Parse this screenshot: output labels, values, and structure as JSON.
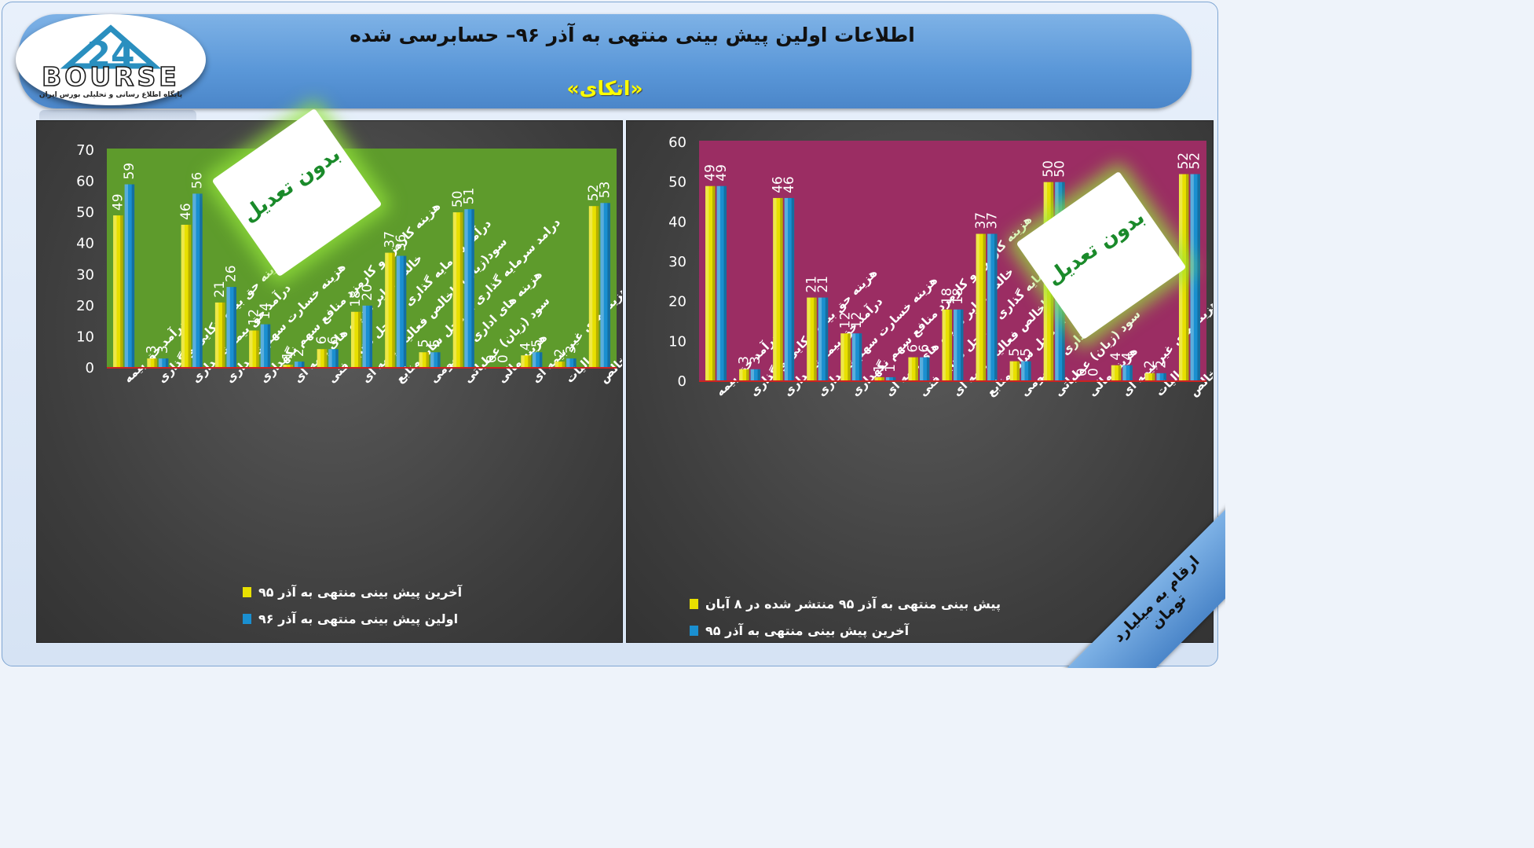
{
  "header": {
    "title": "اطلاعات اولین پیش بینی منتهی به آذر ۹۶– حسابرسی شده",
    "subtitle": "«اتکای»"
  },
  "logo": {
    "number": "24",
    "word": "BOURSE",
    "tagline": "پایگاه اطلاع رسانی و تحلیلی بورس ایران"
  },
  "badges": {
    "left": "بدون تعدیل",
    "right": "بدون تعدیل"
  },
  "units_note": "ارقام به میلیارد تومان",
  "colors": {
    "left_plot_bg": "#5e9b2c",
    "right_plot_bg": "#9b2d63",
    "yellow_series": "#e8e000",
    "blue_series": "#1a8fd0",
    "baseline": "#cc2222"
  },
  "chart_data": [
    {
      "type": "bar",
      "id": "left",
      "categories": [
        "درآمد حق بیمه",
        "هزینه حق بیمه اتکایی واگذاری",
        "درآمد حق بیمه نگهداری",
        "هزینه خسارت سهم نگهداری",
        "هزینه کارمزد و کارمزد منافع سهم نگهداری",
        "خالص سایر هزینه های بیمه ای",
        "درآمد سرمایه گذاری از محل ذخایر فنی",
        "سود(زیان) ناخالص فعالیت بیمه ای",
        "درامد سرمایه گذاری از محل سایر منابع",
        "هزینه های اداری و عمومی",
        "سود (زیان) عملیاتی",
        "هزینه مالی",
        "خالص سایر درامدها و هزینه های غیر بیمه ای",
        "مالیات",
        "سود (زیان) خالص"
      ],
      "series": [
        {
          "name": "آخرین پیش بینی منتهی به آذر ۹۵",
          "values": [
            49,
            3,
            46,
            21,
            12,
            1,
            6,
            18,
            37,
            5,
            50,
            0,
            4,
            2,
            52
          ]
        },
        {
          "name": "اولین پیش بینی منتهی به آذر ۹۶",
          "values": [
            59,
            3,
            56,
            26,
            14,
            2,
            6,
            20,
            36,
            5,
            51,
            0,
            5,
            3,
            53
          ]
        }
      ],
      "ylim": [
        0,
        70
      ],
      "yticks": [
        0,
        10,
        20,
        30,
        40,
        50,
        60,
        70
      ],
      "legend": "bottom"
    },
    {
      "type": "bar",
      "id": "right",
      "categories": [
        "درآمد حق بیمه",
        "هزینه حق بیمه اتکایی واگذاری",
        "درآمد حق بیمه نگهداری",
        "هزینه خسارت سهم نگهداری",
        "هزینه کارمزد و کارمزد منافع سهم نگهداری",
        "خالص سایر هزینه های بیمه ای",
        "درآمد سرمایه گذاری از محل ذخایر فنی",
        "سود(زیان) ناخالص فعالیت بیمه ای",
        "درامد سرمایه گذاری از محل سایر منابع",
        "هزینه های اداری و عمومی",
        "سود (زیان) عملیاتی",
        "هزینه مالی",
        "خالص سایر درامدها و هزینه های غیر بیمه ای",
        "مالیات",
        "سود (زیان) خالص"
      ],
      "series": [
        {
          "name": "پیش بینی منتهی به آذر ۹۵ منتشر شده در ۸ آبان",
          "values": [
            49,
            3,
            46,
            21,
            12,
            1,
            6,
            18,
            37,
            5,
            50,
            0,
            4,
            2,
            52
          ]
        },
        {
          "name": "آخرین پیش بینی منتهی به آذر ۹۵",
          "values": [
            49,
            3,
            46,
            21,
            12,
            1,
            6,
            18,
            37,
            5,
            50,
            0,
            4,
            2,
            52
          ]
        }
      ],
      "ylim": [
        0,
        60
      ],
      "yticks": [
        0,
        10,
        20,
        30,
        40,
        50,
        60
      ],
      "legend": "bottom"
    }
  ]
}
